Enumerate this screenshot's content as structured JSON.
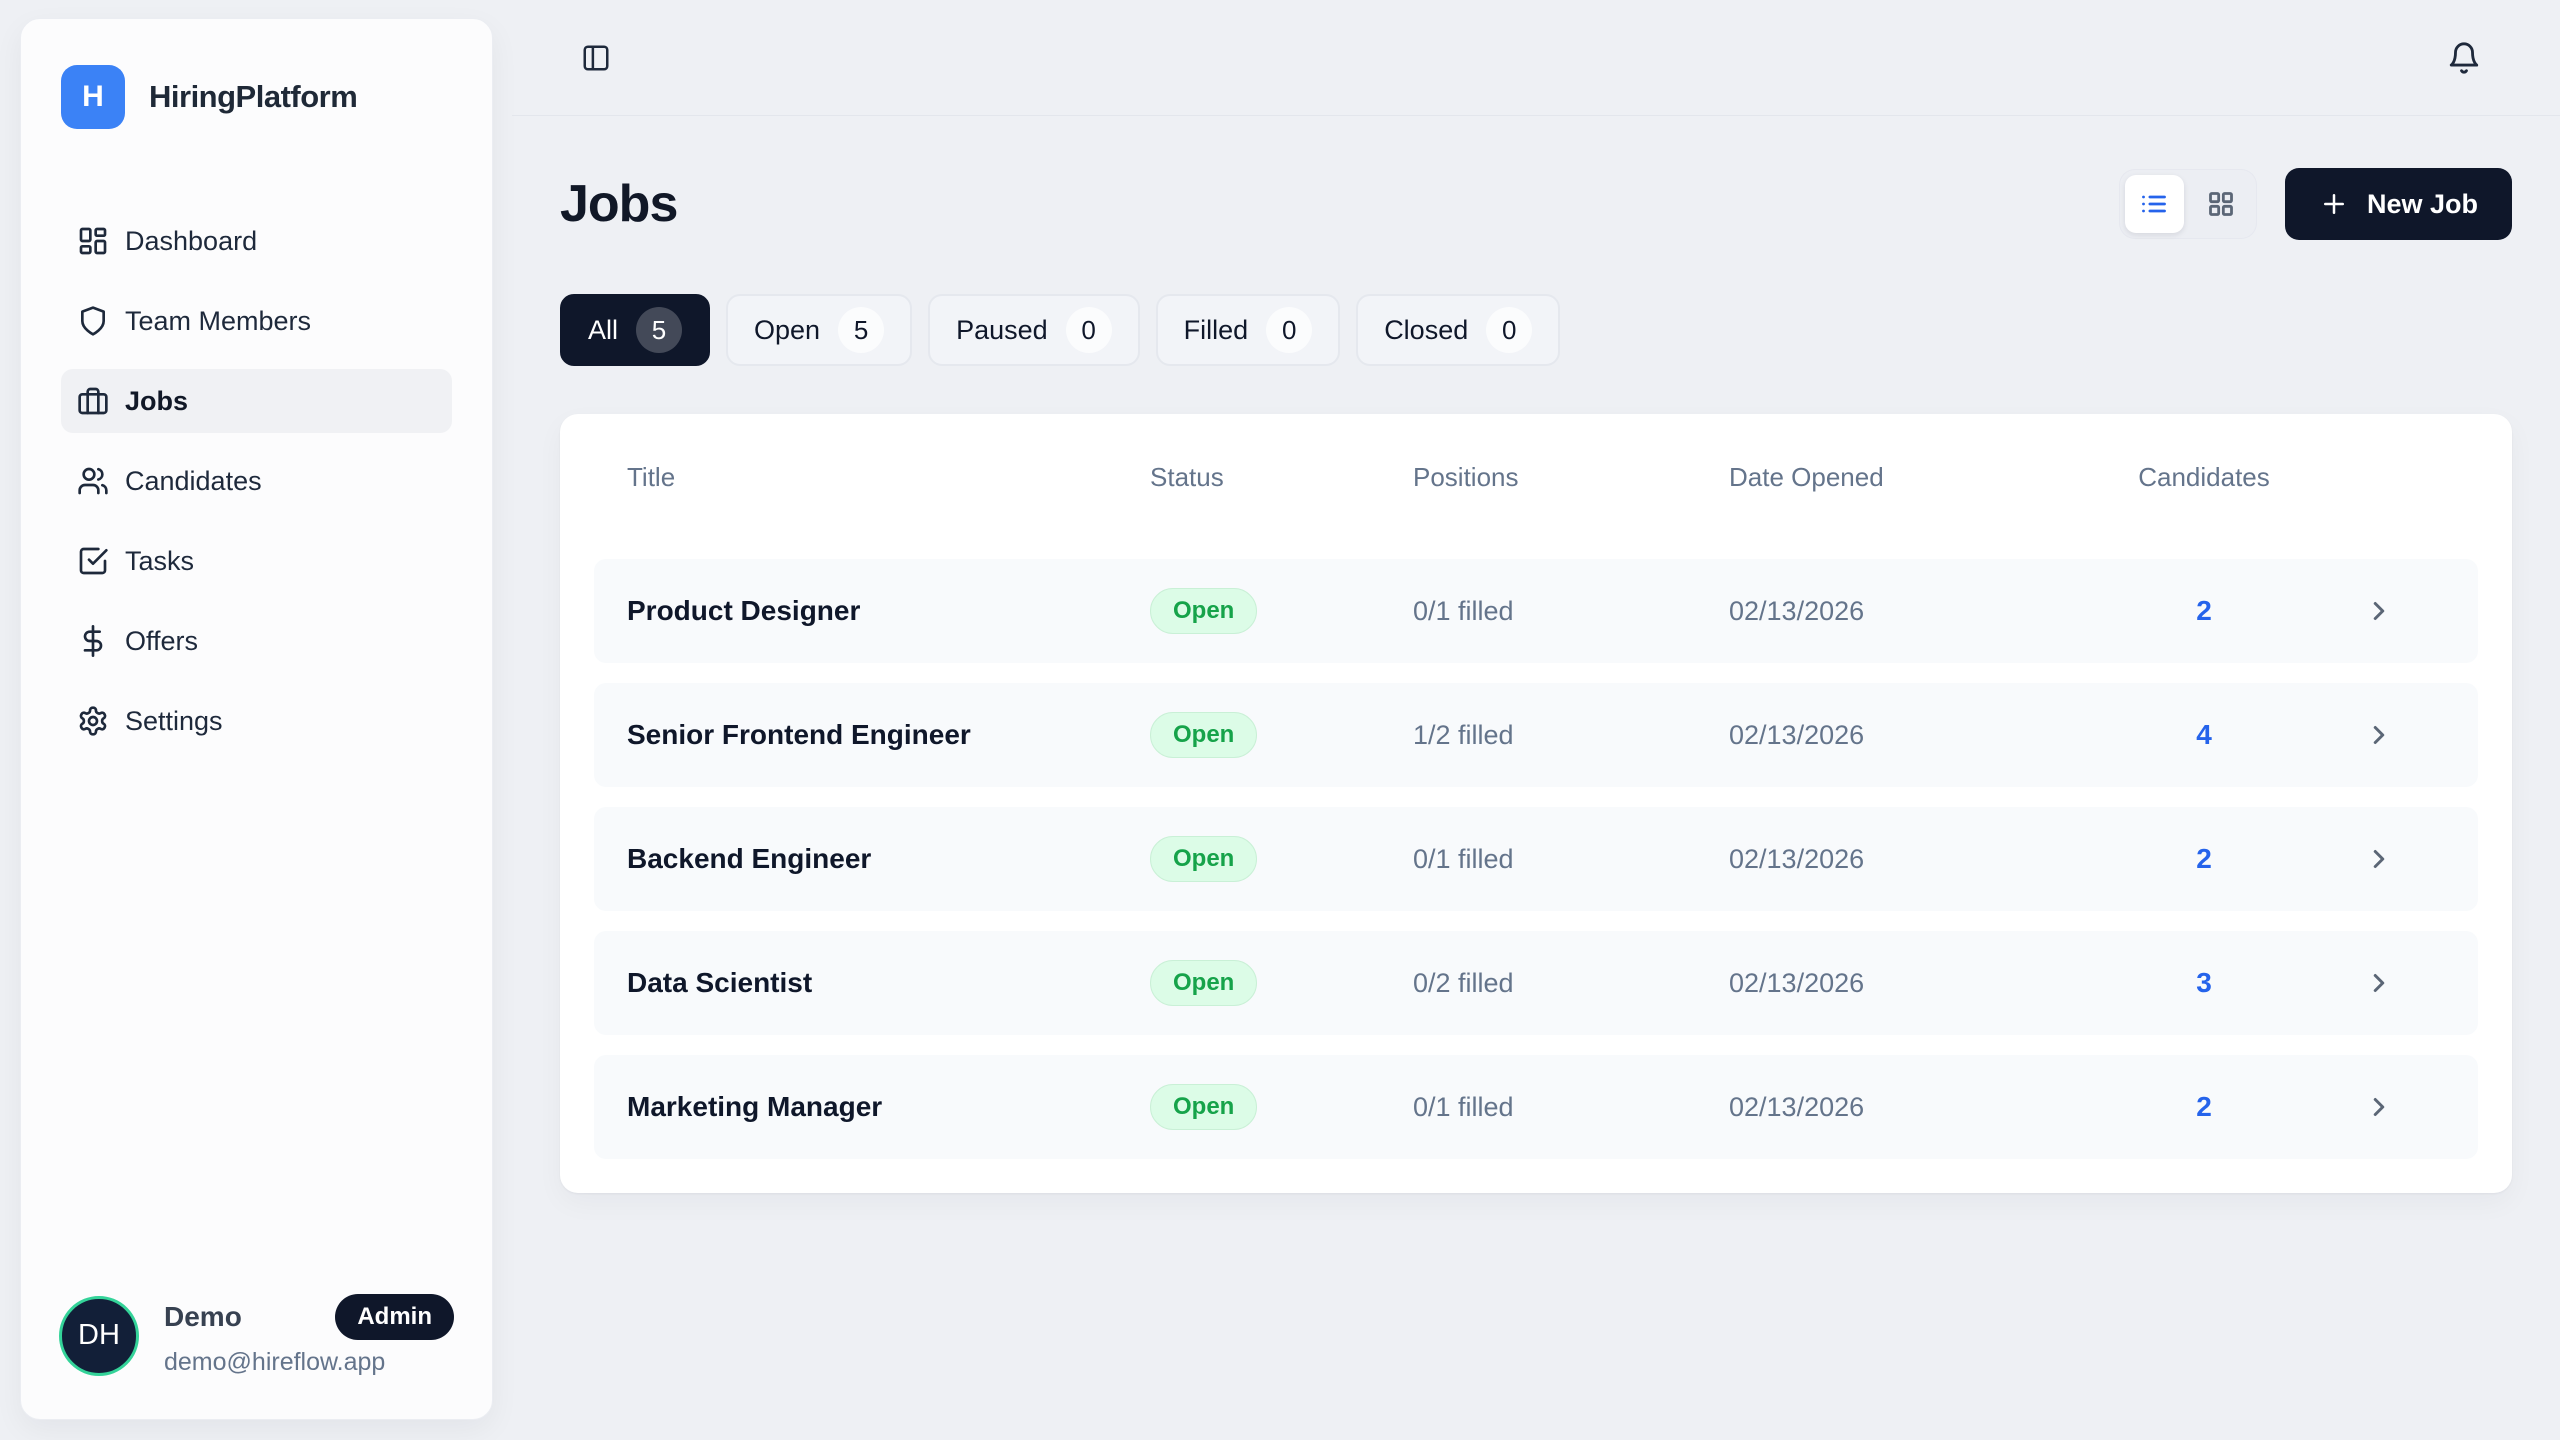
{
  "app": {
    "name": "HiringPlatform",
    "logo_letter": "H"
  },
  "colors": {
    "brand_blue": "#3b82f6",
    "navy": "#0f172a",
    "link_blue": "#2563eb",
    "open_badge_bg": "#dcfce7",
    "open_badge_text": "#16a34a",
    "avatar_ring_green": "#34d399",
    "page_bg": "#eef0f4"
  },
  "sidebar": {
    "items": [
      {
        "label": "Dashboard",
        "icon": "dashboard-icon",
        "active": false
      },
      {
        "label": "Team Members",
        "icon": "shield-icon",
        "active": false
      },
      {
        "label": "Jobs",
        "icon": "briefcase-icon",
        "active": true
      },
      {
        "label": "Candidates",
        "icon": "users-icon",
        "active": false
      },
      {
        "label": "Tasks",
        "icon": "tasks-icon",
        "active": false
      },
      {
        "label": "Offers",
        "icon": "dollar-icon",
        "active": false
      },
      {
        "label": "Settings",
        "icon": "gear-icon",
        "active": false
      }
    ],
    "user": {
      "initials": "DH",
      "name": "Demo",
      "role_badge": "Admin",
      "email": "demo@hireflow.app"
    }
  },
  "topbar": {
    "icons": [
      "panel-left-icon",
      "bell-icon"
    ]
  },
  "header": {
    "title": "Jobs",
    "new_job_label": "New Job",
    "view_toggle_icons": [
      "list-icon",
      "grid-icon"
    ]
  },
  "filters": [
    {
      "label": "All",
      "count": "5",
      "active": true
    },
    {
      "label": "Open",
      "count": "5",
      "active": false
    },
    {
      "label": "Paused",
      "count": "0",
      "active": false
    },
    {
      "label": "Filled",
      "count": "0",
      "active": false
    },
    {
      "label": "Closed",
      "count": "0",
      "active": false
    }
  ],
  "table": {
    "columns": [
      "Title",
      "Status",
      "Positions",
      "Date Opened",
      "Candidates"
    ],
    "rows": [
      {
        "title": "Product Designer",
        "status": "Open",
        "positions": "0/1 filled",
        "date_opened": "02/13/2026",
        "candidates": "2"
      },
      {
        "title": "Senior Frontend Engineer",
        "status": "Open",
        "positions": "1/2 filled",
        "date_opened": "02/13/2026",
        "candidates": "4"
      },
      {
        "title": "Backend Engineer",
        "status": "Open",
        "positions": "0/1 filled",
        "date_opened": "02/13/2026",
        "candidates": "2"
      },
      {
        "title": "Data Scientist",
        "status": "Open",
        "positions": "0/2 filled",
        "date_opened": "02/13/2026",
        "candidates": "3"
      },
      {
        "title": "Marketing Manager",
        "status": "Open",
        "positions": "0/1 filled",
        "date_opened": "02/13/2026",
        "candidates": "2"
      }
    ]
  }
}
